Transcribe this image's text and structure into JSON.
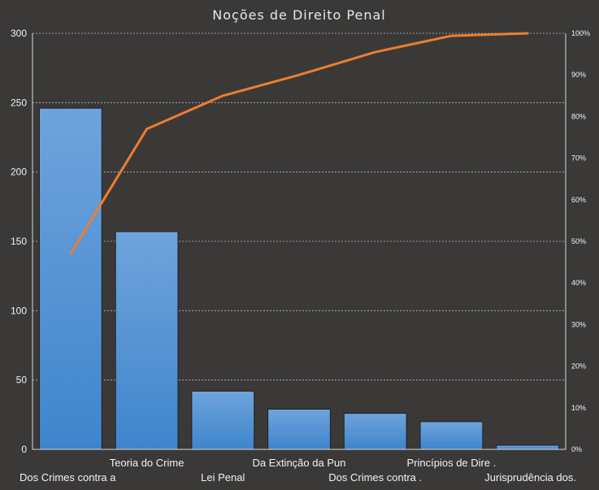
{
  "chart_data": {
    "type": "bar",
    "title": "Noções de Direito Penal",
    "categories": [
      "Dos Crimes contra a",
      "Teoria do Crime",
      "Lei Penal",
      "Da Extinção da Pun",
      "Dos Crimes contra .",
      "Princípios de Dire .",
      "Jurisprudência dos."
    ],
    "series": [
      {
        "type": "bar",
        "values": [
          246,
          157,
          42,
          29,
          26,
          20,
          3
        ]
      },
      {
        "type": "line",
        "axis": "secondary",
        "values": [
          0.47,
          0.77,
          0.85,
          0.9,
          0.955,
          0.994,
          1.0
        ]
      }
    ],
    "ylim": [
      0,
      300
    ],
    "yticks": [
      "0",
      "50",
      "100",
      "150",
      "200",
      "250",
      "300"
    ],
    "y2lim": [
      0,
      1
    ],
    "y2ticks": [
      "0%",
      "10%",
      "20%",
      "30%",
      "40%",
      "50%",
      "60%",
      "70%",
      "80%",
      "90%",
      "100%"
    ],
    "grid": true,
    "colors": {
      "background": "#3b3938",
      "bar_top": "#6fa3dc",
      "bar_bottom": "#3f85cc",
      "line": "#ed7d31"
    }
  }
}
